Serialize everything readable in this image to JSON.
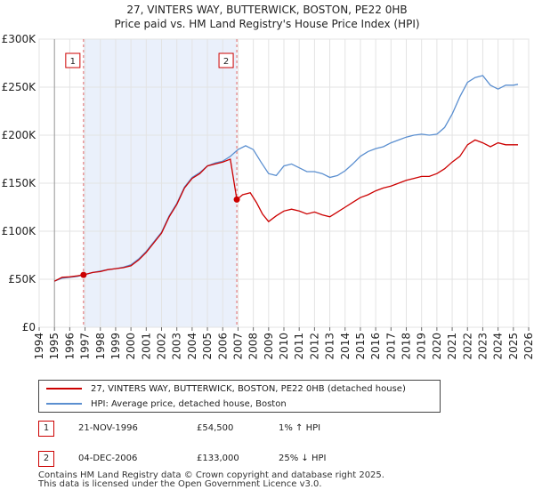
{
  "chart_data": {
    "type": "line",
    "title": "27, VINTERS WAY, BUTTERWICK, BOSTON, PE22 0HB",
    "subtitle": "Price paid vs. HM Land Registry's House Price Index (HPI)",
    "xlabel": "",
    "ylabel": "",
    "xlim": [
      1994,
      2026
    ],
    "ylim": [
      0,
      300000
    ],
    "x_ticks": [
      "1994",
      "1995",
      "1996",
      "1997",
      "1998",
      "1999",
      "2000",
      "2001",
      "2002",
      "2003",
      "2004",
      "2005",
      "2006",
      "2007",
      "2008",
      "2009",
      "2010",
      "2011",
      "2012",
      "2013",
      "2014",
      "2015",
      "2016",
      "2017",
      "2018",
      "2019",
      "2020",
      "2021",
      "2022",
      "2023",
      "2024",
      "2025",
      "2026"
    ],
    "y_ticks": [
      {
        "value": 0,
        "label": "£0"
      },
      {
        "value": 50000,
        "label": "£50K"
      },
      {
        "value": 100000,
        "label": "£100K"
      },
      {
        "value": 150000,
        "label": "£150K"
      },
      {
        "value": 200000,
        "label": "£200K"
      },
      {
        "value": 250000,
        "label": "£250K"
      },
      {
        "value": 300000,
        "label": "£300K"
      }
    ],
    "grid": true,
    "series": [
      {
        "name": "27, VINTERS WAY, BUTTERWICK, BOSTON, PE22 0HB (detached house)",
        "color": "#cc0000",
        "x": [
          1995.0,
          1995.5,
          1996.0,
          1996.5,
          1996.9,
          1997.5,
          1998.0,
          1998.5,
          1999.0,
          1999.5,
          2000.0,
          2000.5,
          2001.0,
          2001.5,
          2002.0,
          2002.5,
          2003.0,
          2003.5,
          2004.0,
          2004.5,
          2005.0,
          2005.5,
          2006.0,
          2006.5,
          2006.92,
          2007.3,
          2007.8,
          2008.2,
          2008.6,
          2009.0,
          2009.5,
          2010.0,
          2010.5,
          2011.0,
          2011.5,
          2012.0,
          2012.5,
          2013.0,
          2013.5,
          2014.0,
          2014.5,
          2015.0,
          2015.5,
          2016.0,
          2016.5,
          2017.0,
          2017.5,
          2018.0,
          2018.5,
          2019.0,
          2019.5,
          2020.0,
          2020.5,
          2021.0,
          2021.5,
          2022.0,
          2022.5,
          2023.0,
          2023.5,
          2024.0,
          2024.5,
          2025.0,
          2025.3
        ],
        "values": [
          48000,
          52000,
          52500,
          53500,
          54500,
          57000,
          58000,
          60000,
          61000,
          62000,
          64000,
          70000,
          78000,
          88000,
          98000,
          115000,
          128000,
          145000,
          155000,
          160000,
          168000,
          170000,
          172000,
          175000,
          133000,
          138000,
          140000,
          130000,
          118000,
          110000,
          116000,
          121000,
          123000,
          121000,
          118000,
          120000,
          117000,
          115000,
          120000,
          125000,
          130000,
          135000,
          138000,
          142000,
          145000,
          147000,
          150000,
          153000,
          155000,
          157000,
          157000,
          160000,
          165000,
          172000,
          178000,
          190000,
          195000,
          192000,
          188000,
          192000,
          190000,
          190000,
          190000
        ]
      },
      {
        "name": "HPI: Average price, detached house, Boston",
        "color": "#5b8fd0",
        "x": [
          1995.0,
          1995.5,
          1996.0,
          1996.5,
          1997.0,
          1997.5,
          1998.0,
          1998.5,
          1999.0,
          1999.5,
          2000.0,
          2000.5,
          2001.0,
          2001.5,
          2002.0,
          2002.5,
          2003.0,
          2003.5,
          2004.0,
          2004.5,
          2005.0,
          2005.5,
          2006.0,
          2006.5,
          2007.0,
          2007.5,
          2008.0,
          2008.5,
          2009.0,
          2009.5,
          2010.0,
          2010.5,
          2011.0,
          2011.5,
          2012.0,
          2012.5,
          2013.0,
          2013.5,
          2014.0,
          2014.5,
          2015.0,
          2015.5,
          2016.0,
          2016.5,
          2017.0,
          2017.5,
          2018.0,
          2018.5,
          2019.0,
          2019.5,
          2020.0,
          2020.5,
          2021.0,
          2021.5,
          2022.0,
          2022.5,
          2023.0,
          2023.5,
          2024.0,
          2024.5,
          2025.0,
          2025.3
        ],
        "values": [
          48000,
          51000,
          52000,
          53000,
          55000,
          57000,
          58500,
          60000,
          61000,
          62500,
          65000,
          71000,
          79000,
          89000,
          99000,
          116000,
          129000,
          146000,
          156000,
          161000,
          168000,
          171000,
          173000,
          178000,
          185000,
          189000,
          185000,
          172000,
          160000,
          158000,
          168000,
          170000,
          166000,
          162000,
          162000,
          160000,
          156000,
          158000,
          163000,
          170000,
          178000,
          183000,
          186000,
          188000,
          192000,
          195000,
          198000,
          200000,
          201000,
          200000,
          201000,
          208000,
          222000,
          240000,
          255000,
          260000,
          262000,
          252000,
          248000,
          252000,
          252000,
          253000
        ]
      }
    ],
    "events": [
      {
        "label": "1",
        "x": 1996.9,
        "price": 54500
      },
      {
        "label": "2",
        "x": 2006.92,
        "price": 133000
      }
    ]
  },
  "legend": {
    "property_label": "27, VINTERS WAY, BUTTERWICK, BOSTON, PE22 0HB (detached house)",
    "hpi_label": "HPI: Average price, detached house, Boston",
    "property_color": "#cc0000",
    "hpi_color": "#5b8fd0"
  },
  "sales": [
    {
      "num": "1",
      "date": "21-NOV-1996",
      "price": "£54,500",
      "hpi": "1% ↑ HPI"
    },
    {
      "num": "2",
      "date": "04-DEC-2006",
      "price": "£133,000",
      "hpi": "25% ↓ HPI"
    }
  ],
  "footer": {
    "line1": "Contains HM Land Registry data © Crown copyright and database right 2025.",
    "line2": "This data is licensed under the Open Government Licence v3.0."
  }
}
